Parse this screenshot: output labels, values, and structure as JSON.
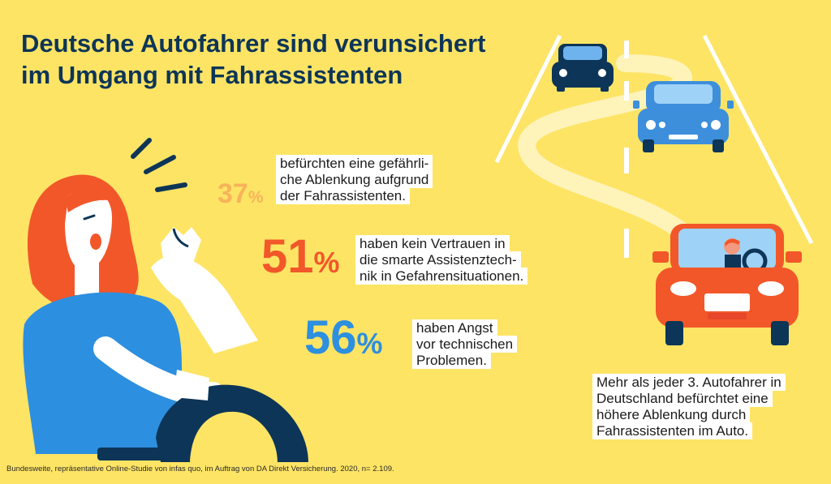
{
  "title": {
    "line1": "Deutsche Autofahrer sind verunsichert",
    "line2": "im Umgang mit Fahrassistenten"
  },
  "stats": [
    {
      "number": "37",
      "unit": "%",
      "value": 37,
      "color": "#f7b35a",
      "lines": [
        "befürchten eine gefährli-",
        "che Ablenkung aufgrund",
        "der Fahrassistenten."
      ]
    },
    {
      "number": "51",
      "unit": "%",
      "value": 51,
      "color": "#f2572a",
      "lines": [
        "haben kein Vertrauen in",
        "die smarte Assistenztech-",
        "nik in Gefahrensituationen."
      ]
    },
    {
      "number": "56",
      "unit": "%",
      "value": 56,
      "color": "#2d8fdf",
      "lines": [
        "haben Angst",
        "vor technischen",
        "Problemen."
      ]
    }
  ],
  "summary": {
    "lines": [
      "Mehr als jeder 3. Autofahrer in",
      "Deutschland befürchtet eine",
      "höhere Ablenkung durch",
      "Fahrassistenten im Auto."
    ]
  },
  "footnote": "Bundesweite, repräsentative Online-Studie von infas quo, im Auftrag von DA Direkt Versicherung. 2020, n= 2.109.",
  "colors": {
    "background": "#fde465",
    "title": "#0d3557",
    "navy_car": "#0d3557",
    "blue_car": "#3d8fdc",
    "red_car": "#f2572a",
    "hair": "#f2572a",
    "shirt": "#2d8fdf",
    "road_lines": "#ffffff"
  }
}
